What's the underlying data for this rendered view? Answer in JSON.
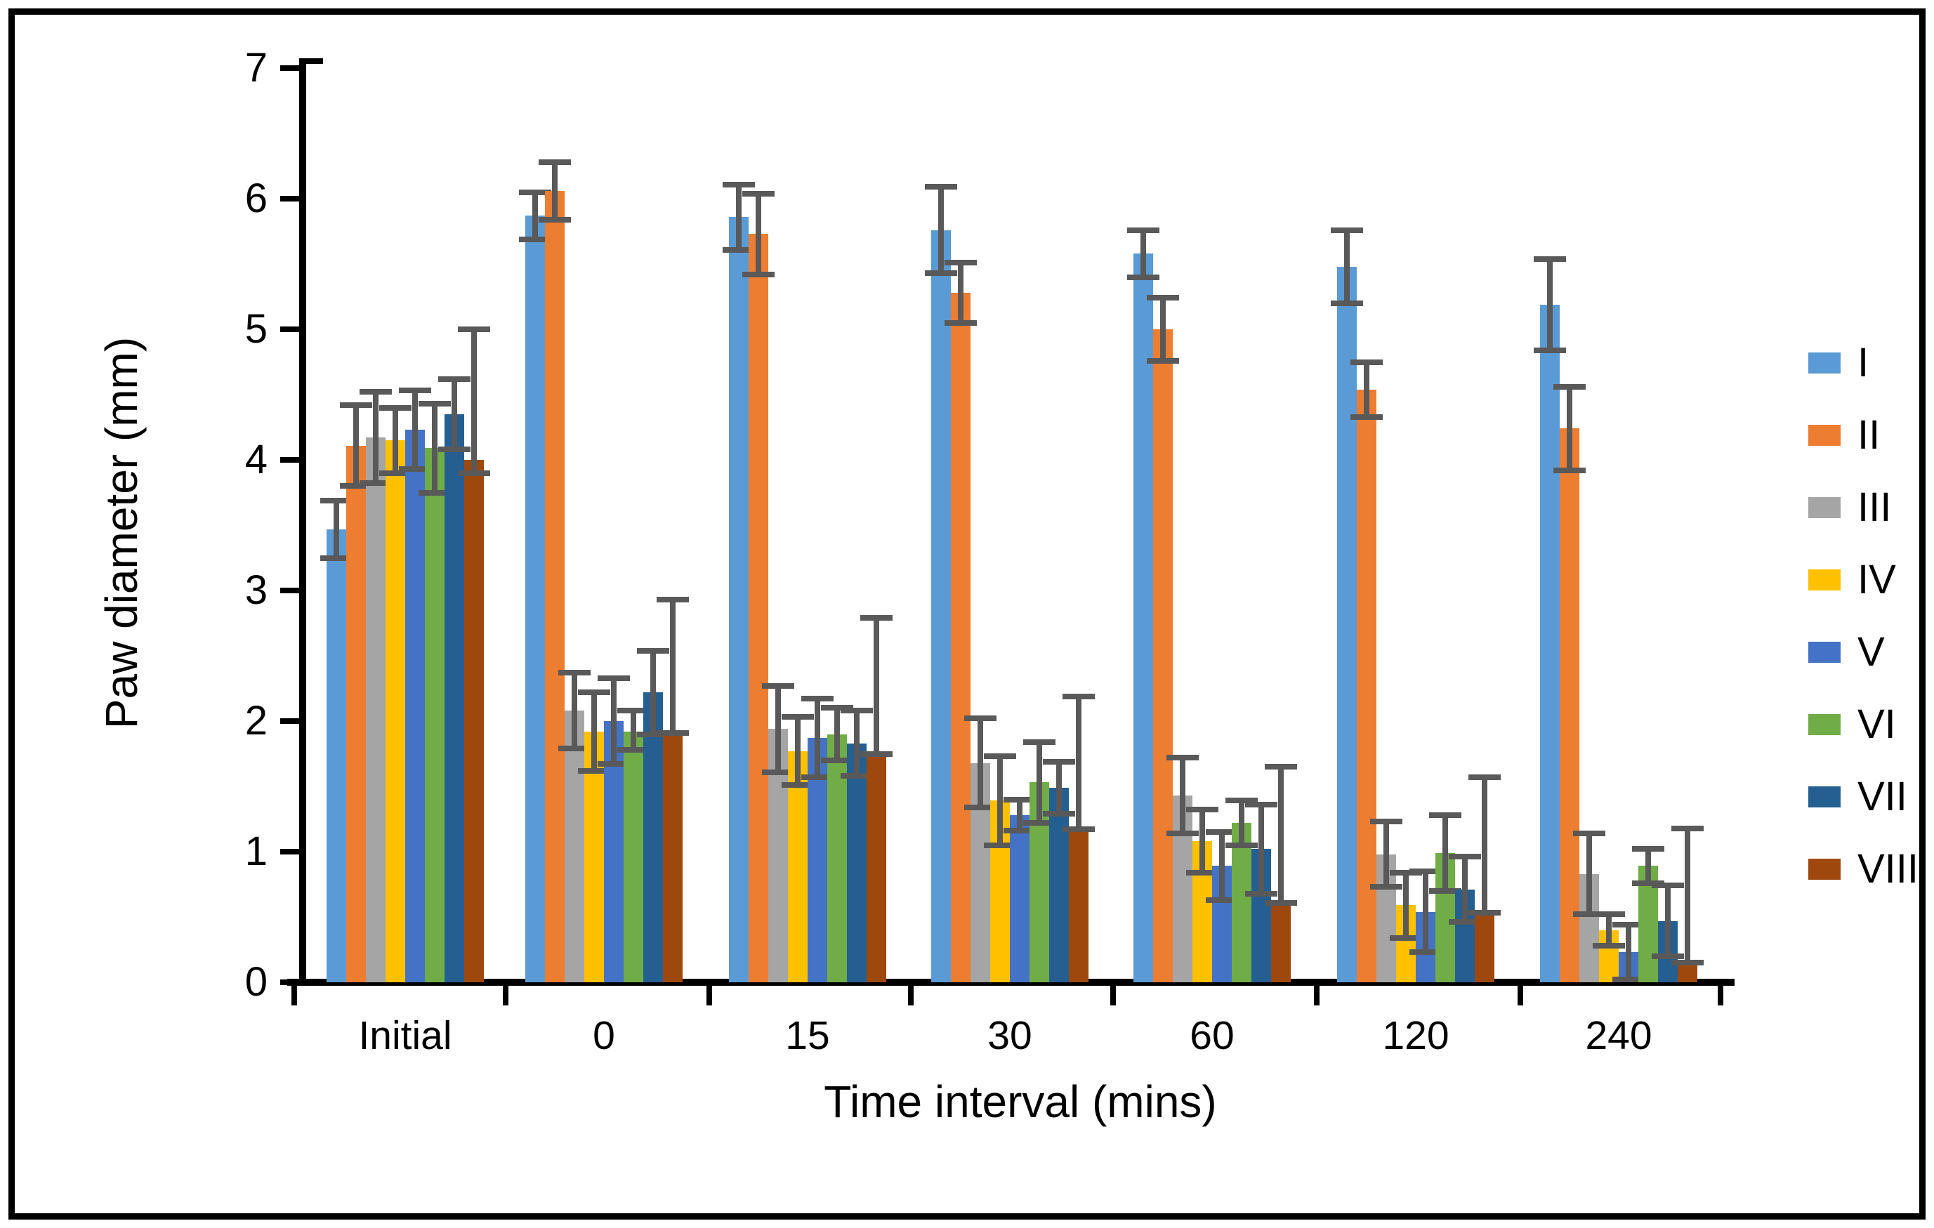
{
  "figure": {
    "background": "#ffffff",
    "border_color": "#000000"
  },
  "chart_data": {
    "type": "bar",
    "title": "",
    "xlabel": "Time interval (mins)",
    "ylabel": "Paw diameter (mm)",
    "categories": [
      "Initial",
      "0",
      "15",
      "30",
      "60",
      "120",
      "240"
    ],
    "ylim": [
      0,
      7
    ],
    "yticks": [
      0,
      1,
      2,
      3,
      4,
      5,
      6,
      7
    ],
    "grid": false,
    "legend_position": "right",
    "error_bar_color": "#595959",
    "series": [
      {
        "name": "I",
        "color": "#5B9BD5",
        "values": [
          3.47,
          5.87,
          5.86,
          5.76,
          5.58,
          5.48,
          5.19
        ],
        "err_up": [
          0.22,
          0.18,
          0.25,
          0.33,
          0.18,
          0.28,
          0.35
        ],
        "err_down": [
          0.22,
          0.18,
          0.25,
          0.33,
          0.18,
          0.28,
          0.35
        ]
      },
      {
        "name": "II",
        "color": "#ED7D31",
        "values": [
          4.11,
          6.06,
          5.73,
          5.28,
          5.0,
          4.54,
          4.24
        ],
        "err_up": [
          0.31,
          0.22,
          0.31,
          0.23,
          0.24,
          0.21,
          0.32
        ],
        "err_down": [
          0.31,
          0.22,
          0.31,
          0.23,
          0.24,
          0.21,
          0.32
        ]
      },
      {
        "name": "III",
        "color": "#A5A5A5",
        "values": [
          4.17,
          2.08,
          1.94,
          1.68,
          1.43,
          0.98,
          0.83
        ],
        "err_up": [
          0.35,
          0.29,
          0.33,
          0.34,
          0.29,
          0.25,
          0.31
        ],
        "err_down": [
          0.35,
          0.29,
          0.33,
          0.34,
          0.29,
          0.25,
          0.31
        ]
      },
      {
        "name": "IV",
        "color": "#FFC000",
        "values": [
          4.15,
          1.92,
          1.77,
          1.39,
          1.08,
          0.59,
          0.4
        ],
        "err_up": [
          0.25,
          0.3,
          0.26,
          0.34,
          0.24,
          0.25,
          0.12
        ],
        "err_down": [
          0.25,
          0.3,
          0.26,
          0.34,
          0.24,
          0.25,
          0.12
        ]
      },
      {
        "name": "V",
        "color": "#4472C4",
        "values": [
          4.23,
          2.0,
          1.87,
          1.28,
          0.89,
          0.54,
          0.23
        ],
        "err_up": [
          0.3,
          0.33,
          0.3,
          0.12,
          0.26,
          0.31,
          0.21
        ],
        "err_down": [
          0.3,
          0.33,
          0.3,
          0.12,
          0.26,
          0.31,
          0.21
        ]
      },
      {
        "name": "VI",
        "color": "#70AD47",
        "values": [
          4.09,
          1.92,
          1.9,
          1.53,
          1.22,
          0.99,
          0.89
        ],
        "err_up": [
          0.34,
          0.16,
          0.2,
          0.31,
          0.17,
          0.29,
          0.13
        ],
        "err_down": [
          0.34,
          0.14,
          0.2,
          0.31,
          0.17,
          0.29,
          0.13
        ]
      },
      {
        "name": "VII",
        "color": "#255E91",
        "values": [
          4.35,
          2.22,
          1.83,
          1.49,
          1.02,
          0.71,
          0.47
        ],
        "err_up": [
          0.27,
          0.32,
          0.25,
          0.2,
          0.34,
          0.25,
          0.27
        ],
        "err_down": [
          0.27,
          0.32,
          0.25,
          0.2,
          0.34,
          0.25,
          0.27
        ]
      },
      {
        "name": "VIII",
        "color": "#9E480E",
        "values": [
          4.0,
          1.93,
          1.77,
          1.19,
          0.63,
          0.55,
          0.17
        ],
        "err_up": [
          1.0,
          1.0,
          1.02,
          1.0,
          1.02,
          1.02,
          1.01
        ],
        "err_down": [
          0.1,
          0.02,
          0.02,
          0.02,
          0.02,
          0.02,
          0.02
        ]
      }
    ]
  }
}
